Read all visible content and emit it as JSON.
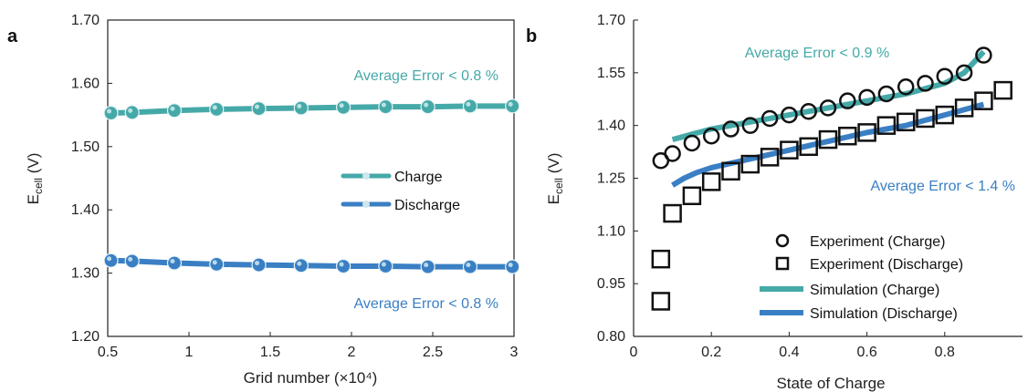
{
  "colors": {
    "charge": "#45a9a8",
    "discharge": "#3a7fc4",
    "axis": "#222222",
    "marker_edge": "#111111"
  },
  "chart_data": [
    {
      "type": "line",
      "panel": "a",
      "xlabel": "Grid number (×10⁴)",
      "ylabel_main": "E",
      "ylabel_sub": "cell",
      "ylabel_unit": " (V)",
      "xlim": [
        0.5,
        3.0
      ],
      "ylim": [
        1.2,
        1.7
      ],
      "xticks": [
        0.5,
        1.0,
        1.5,
        2.0,
        2.5,
        3.0
      ],
      "xtick_labels": [
        "0.5",
        "1",
        "1.5",
        "2",
        "2.5",
        "3"
      ],
      "yticks": [
        1.2,
        1.3,
        1.4,
        1.5,
        1.6,
        1.7
      ],
      "ytick_labels": [
        "1.20",
        "1.30",
        "1.40",
        "1.50",
        "1.60",
        "1.70"
      ],
      "grid": false,
      "legend_position": "center-right",
      "series": [
        {
          "name": "Charge",
          "x": [
            0.52,
            0.65,
            0.91,
            1.17,
            1.43,
            1.69,
            1.95,
            2.21,
            2.47,
            2.73,
            2.99
          ],
          "y": [
            1.553,
            1.554,
            1.557,
            1.559,
            1.56,
            1.561,
            1.562,
            1.563,
            1.563,
            1.564,
            1.564
          ]
        },
        {
          "name": "Discharge",
          "x": [
            0.52,
            0.65,
            0.91,
            1.17,
            1.43,
            1.69,
            1.95,
            2.21,
            2.47,
            2.73,
            2.99
          ],
          "y": [
            1.32,
            1.319,
            1.316,
            1.314,
            1.313,
            1.312,
            1.311,
            1.311,
            1.31,
            1.31,
            1.31
          ]
        }
      ],
      "annotations": [
        {
          "text": "Average Error < 0.8 %",
          "series": "Charge",
          "position": "upper-right"
        },
        {
          "text": "Average Error < 0.8 %",
          "series": "Discharge",
          "position": "lower-right"
        }
      ]
    },
    {
      "type": "line",
      "panel": "b",
      "xlabel": "State of Charge",
      "ylabel_main": "E",
      "ylabel_sub": "cell",
      "ylabel_unit": " (V)",
      "xlim": [
        0,
        1.0
      ],
      "ylim": [
        0.8,
        1.7
      ],
      "xticks": [
        0,
        0.2,
        0.4,
        0.6,
        0.8
      ],
      "xtick_labels": [
        "0",
        "0.2",
        "0.4",
        "0.6",
        "0.8"
      ],
      "yticks": [
        0.8,
        0.95,
        1.1,
        1.25,
        1.4,
        1.55,
        1.7
      ],
      "ytick_labels": [
        "0.80",
        "0.95",
        "1.10",
        "1.25",
        "1.40",
        "1.55",
        "1.70"
      ],
      "grid": false,
      "legend_position": "lower-right",
      "series": [
        {
          "name": "Experiment (Charge)",
          "marker": "circle",
          "x": [
            0.07,
            0.1,
            0.15,
            0.2,
            0.25,
            0.3,
            0.35,
            0.4,
            0.45,
            0.5,
            0.55,
            0.6,
            0.65,
            0.7,
            0.75,
            0.8,
            0.85,
            0.9
          ],
          "y": [
            1.3,
            1.32,
            1.35,
            1.37,
            1.39,
            1.4,
            1.42,
            1.43,
            1.44,
            1.45,
            1.47,
            1.48,
            1.49,
            1.51,
            1.52,
            1.54,
            1.55,
            1.6
          ]
        },
        {
          "name": "Experiment (Discharge)",
          "marker": "square",
          "x": [
            0.07,
            0.07,
            0.1,
            0.15,
            0.2,
            0.25,
            0.3,
            0.35,
            0.4,
            0.45,
            0.5,
            0.55,
            0.6,
            0.65,
            0.7,
            0.75,
            0.8,
            0.85,
            0.9,
            0.95
          ],
          "y": [
            0.9,
            1.02,
            1.15,
            1.2,
            1.24,
            1.27,
            1.29,
            1.31,
            1.33,
            1.34,
            1.36,
            1.37,
            1.38,
            1.4,
            1.41,
            1.42,
            1.43,
            1.45,
            1.47,
            1.5
          ]
        },
        {
          "name": "Simulation (Charge)",
          "marker": "none",
          "x": [
            0.1,
            0.15,
            0.2,
            0.3,
            0.4,
            0.5,
            0.6,
            0.7,
            0.8,
            0.85,
            0.9
          ],
          "y": [
            1.36,
            1.375,
            1.39,
            1.41,
            1.43,
            1.45,
            1.47,
            1.49,
            1.52,
            1.55,
            1.61
          ]
        },
        {
          "name": "Simulation (Discharge)",
          "marker": "none",
          "x": [
            0.1,
            0.13,
            0.16,
            0.2,
            0.3,
            0.4,
            0.5,
            0.6,
            0.7,
            0.8,
            0.9
          ],
          "y": [
            1.23,
            1.25,
            1.265,
            1.28,
            1.305,
            1.33,
            1.355,
            1.38,
            1.4,
            1.43,
            1.46
          ]
        }
      ],
      "annotations": [
        {
          "text": "Average Error < 0.9 %",
          "series": "Simulation (Charge)",
          "position": "top"
        },
        {
          "text": "Average Error < 1.4 %",
          "series": "Simulation (Discharge)",
          "position": "right"
        }
      ]
    }
  ]
}
